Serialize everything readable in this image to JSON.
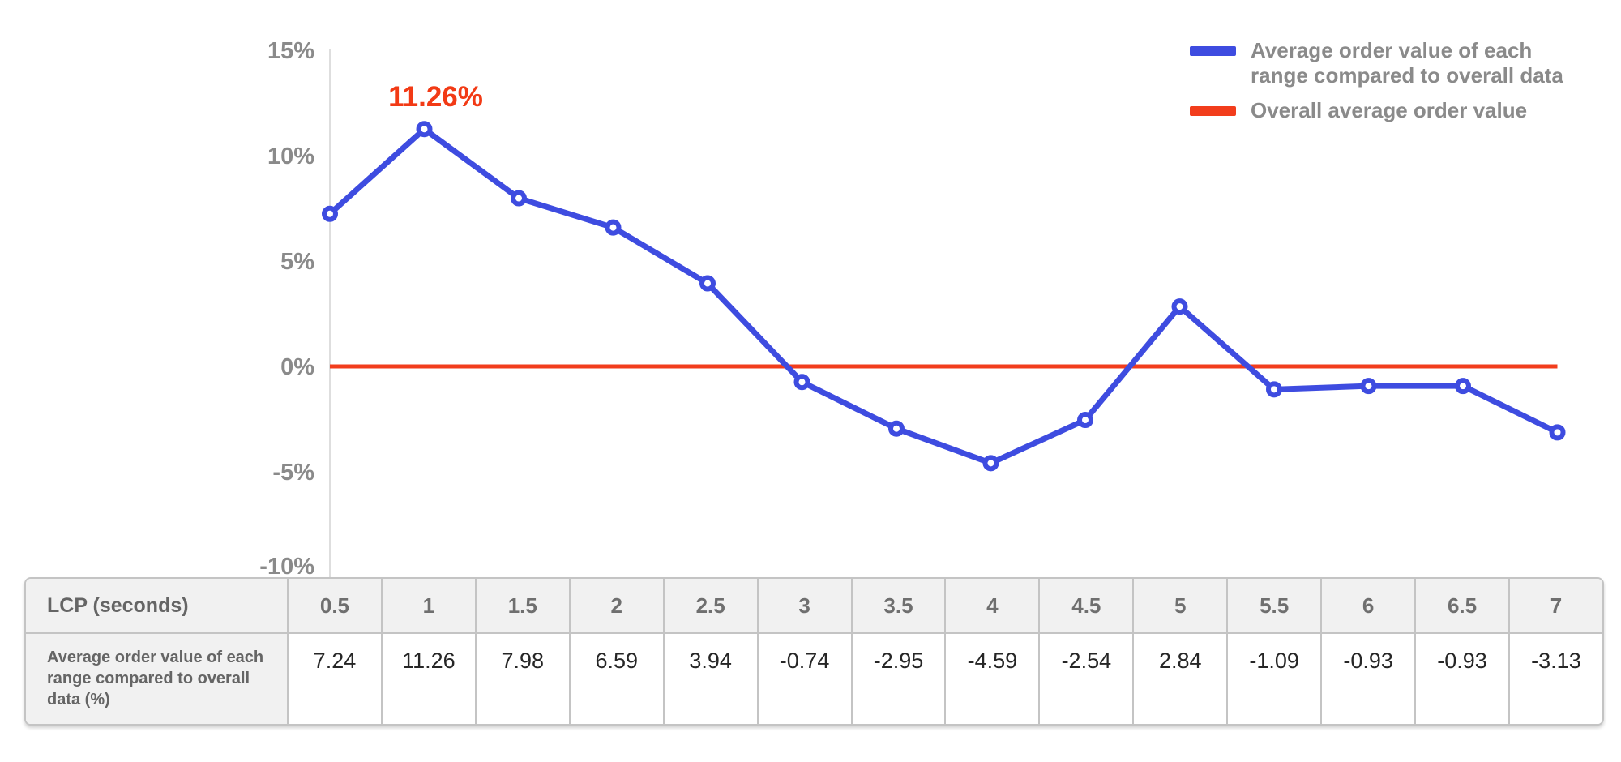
{
  "chart_data": {
    "type": "line",
    "x": [
      0.5,
      1,
      1.5,
      2,
      2.5,
      3,
      3.5,
      4,
      4.5,
      5,
      5.5,
      6,
      6.5,
      7
    ],
    "series": [
      {
        "name": "Average order value of each range compared to overall data",
        "values": [
          7.24,
          11.26,
          7.98,
          6.59,
          3.94,
          -0.74,
          -2.95,
          -4.59,
          -2.54,
          2.84,
          -1.09,
          -0.93,
          -0.93,
          -3.13
        ],
        "color": "#3e4ce0",
        "marker": "open-circle"
      },
      {
        "name": "Overall average order value",
        "constant": 0,
        "color": "#f23d1c"
      }
    ],
    "title": "",
    "xlabel": "LCP (seconds)",
    "ylabel": "",
    "ylim": [
      -10,
      15
    ],
    "y_ticks": [
      {
        "label": "15%",
        "value": 15
      },
      {
        "label": "10%",
        "value": 10
      },
      {
        "label": "5%",
        "value": 5
      },
      {
        "label": "0%",
        "value": 0
      },
      {
        "label": "-5%",
        "value": -5
      },
      {
        "label": "-10%",
        "value": -10
      }
    ],
    "grid": false,
    "legend_position": "top-right",
    "annotation": {
      "label": "11.26%",
      "x": 1,
      "value": 11.26
    }
  },
  "legend": {
    "items": [
      {
        "label": "Average order value of each\nrange compared to overall data",
        "color": "#3e4ce0"
      },
      {
        "label": "Overall average order value",
        "color": "#f23d1c"
      }
    ]
  },
  "table": {
    "header_label": "LCP (seconds)",
    "row_label": "Average order value of each\nrange compared to overall\ndata (%)",
    "lcp_values": [
      "0.5",
      "1",
      "1.5",
      "2",
      "2.5",
      "3",
      "3.5",
      "4",
      "4.5",
      "5",
      "5.5",
      "6",
      "6.5",
      "7"
    ],
    "aov_values": [
      "7.24",
      "11.26",
      "7.98",
      "6.59",
      "3.94",
      "-0.74",
      "-2.95",
      "-4.59",
      "-2.54",
      "2.84",
      "-1.09",
      "-0.93",
      "-0.93",
      "-3.13"
    ]
  },
  "colors": {
    "line_blue": "#3e4ce0",
    "line_red": "#f23d1c",
    "annotation_red": "#f23a15",
    "axis_text": "#8a8a8a",
    "axis_line": "#dedede",
    "table_border": "#c4c4c4",
    "table_header_bg": "#f1f1f1",
    "value_text": "#262626"
  }
}
